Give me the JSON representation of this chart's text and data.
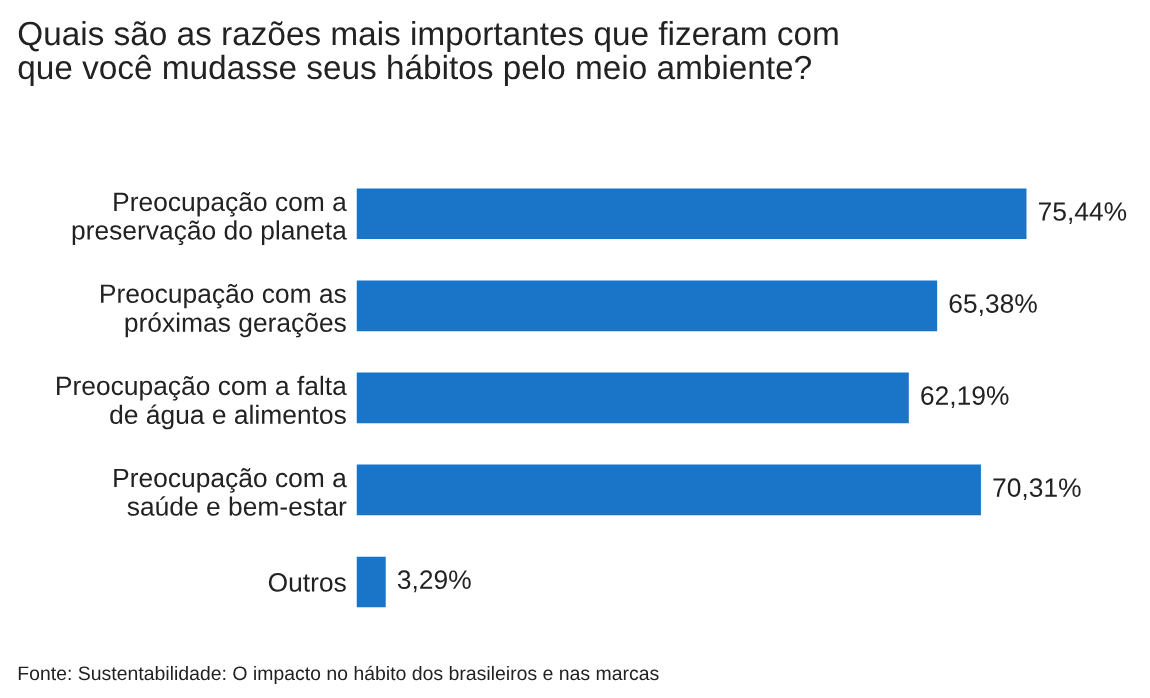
{
  "chart_data": {
    "type": "bar",
    "orientation": "horizontal",
    "title": "Quais são as razões mais importantes que fizeram com\nque você mudasse seus hábitos pelo meio ambiente?",
    "categories": [
      "Preocupação com a\npreservação do planeta",
      "Preocupação com as\npróximas gerações",
      "Preocupação com a falta\nde água e alimentos",
      "Preocupação com a\nsaúde e bem-estar",
      "Outros"
    ],
    "values": [
      75.44,
      65.38,
      62.19,
      70.31,
      3.29
    ],
    "value_labels": [
      "75,44%",
      "65,38%",
      "62,19%",
      "70,31%",
      "3,29%"
    ],
    "color": "#1a75c9",
    "tick_labels": "y",
    "grid": false,
    "annotations": [
      "Fonte: Sustentabilidade: O impacto no hábito dos brasileiros e nas marcas"
    ]
  }
}
